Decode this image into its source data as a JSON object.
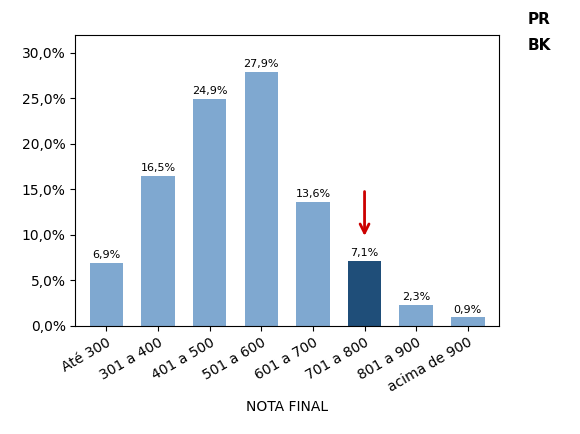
{
  "chart_data": {
    "type": "bar",
    "categories": [
      "Até 300",
      "301 a 400",
      "401 a 500",
      "501 a 600",
      "601 a 700",
      "701 a 800",
      "801 a 900",
      "acima de 900"
    ],
    "values": [
      6.9,
      16.5,
      24.9,
      27.9,
      13.6,
      7.1,
      2.3,
      0.9
    ],
    "value_labels": [
      "6,9%",
      "16,5%",
      "24,9%",
      "27,9%",
      "13,6%",
      "7,1%",
      "2,3%",
      "0,9%"
    ],
    "data_labels": true,
    "colors": [
      "#7fa8d0",
      "#7fa8d0",
      "#7fa8d0",
      "#7fa8d0",
      "#7fa8d0",
      "#1f4e79",
      "#7fa8d0",
      "#7fa8d0"
    ],
    "x_label": "NOTA FINAL",
    "ylim": [
      0,
      32
    ],
    "yticks": [
      {
        "value": 0.0,
        "label": "0,0%"
      },
      {
        "value": 5.0,
        "label": "5,0%"
      },
      {
        "value": 10.0,
        "label": "10,0%"
      },
      {
        "value": 15.0,
        "label": "15,0%"
      },
      {
        "value": 20.0,
        "label": "20,0%"
      },
      {
        "value": 25.0,
        "label": "25,0%"
      },
      {
        "value": 30.0,
        "label": "30,0%"
      }
    ],
    "grid": false,
    "annotations": [
      {
        "text": "PR"
      },
      {
        "text": "BK"
      },
      {
        "x": "701 a 800",
        "marker": "arrow",
        "color": "#cc0000"
      }
    ]
  }
}
